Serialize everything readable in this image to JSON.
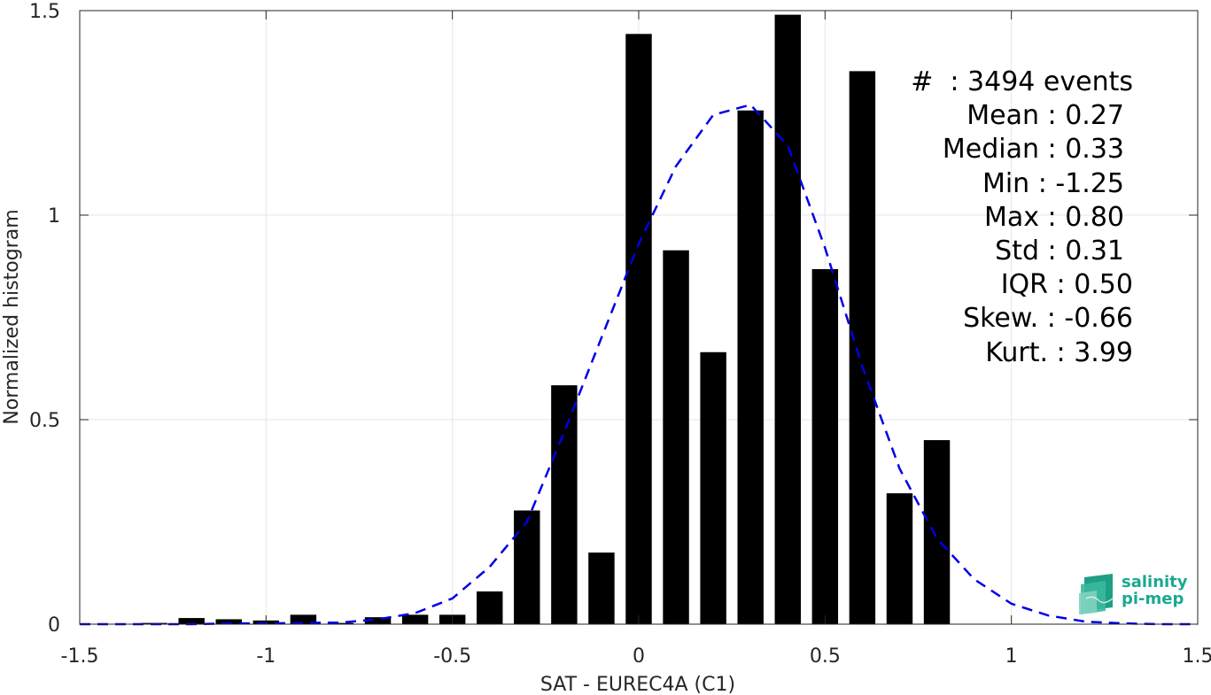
{
  "chart_data": {
    "type": "bar",
    "xlabel": "SAT - EUREC4A (C1)",
    "ylabel": "Normalized histogram",
    "xlim": [
      -1.5,
      1.5
    ],
    "ylim": [
      0,
      1.5
    ],
    "xticks": [
      -1.5,
      -1,
      -0.5,
      0,
      0.5,
      1,
      1.5
    ],
    "xtick_labels": [
      "-1.5",
      "-1",
      "-0.5",
      "0",
      "0.5",
      "1",
      "1.5"
    ],
    "yticks": [
      0,
      0.5,
      1,
      1.5
    ],
    "ytick_labels": [
      "0",
      "0.5",
      "1",
      "1.5"
    ],
    "grid": true,
    "bar_width": 0.07,
    "bar_color": "#000000",
    "bars": {
      "x": [
        -1.3,
        -1.2,
        -1.1,
        -1.0,
        -0.9,
        -0.8,
        -0.7,
        -0.6,
        -0.5,
        -0.4,
        -0.3,
        -0.2,
        -0.1,
        0.0,
        0.1,
        0.2,
        0.3,
        0.4,
        0.5,
        0.6,
        0.7,
        0.8
      ],
      "values": [
        0.003,
        0.015,
        0.012,
        0.009,
        0.023,
        0.003,
        0.017,
        0.023,
        0.023,
        0.08,
        0.278,
        0.584,
        0.175,
        1.443,
        0.914,
        0.665,
        1.256,
        1.49,
        0.868,
        1.352,
        0.32,
        0.45
      ]
    },
    "fit_curve": {
      "color": "#0000e6",
      "style": "dashed",
      "x": [
        -1.5,
        -1.4,
        -1.3,
        -1.2,
        -1.1,
        -1.0,
        -0.9,
        -0.8,
        -0.7,
        -0.6,
        -0.5,
        -0.4,
        -0.3,
        -0.2,
        -0.1,
        0.0,
        0.1,
        0.2,
        0.3,
        0.4,
        0.5,
        0.6,
        0.7,
        0.8,
        0.9,
        1.0,
        1.1,
        1.2,
        1.3,
        1.4,
        1.5
      ],
      "y": [
        0.0,
        0.0,
        0.0,
        0.0,
        0.002,
        0.002,
        0.003,
        0.004,
        0.012,
        0.027,
        0.063,
        0.14,
        0.25,
        0.47,
        0.7,
        0.93,
        1.12,
        1.245,
        1.27,
        1.17,
        0.92,
        0.63,
        0.38,
        0.21,
        0.11,
        0.05,
        0.021,
        0.006,
        0.002,
        0.0,
        0.0
      ]
    },
    "annotation": [
      "#  : 3494 events",
      "Mean : 0.27",
      "Median : 0.33",
      "Min : -1.25",
      "Max : 0.80",
      "Std : 0.31",
      "IQR : 0.50",
      "Skew. : -0.66",
      "Kurt. : 3.99"
    ]
  },
  "logo": {
    "line1": "salinity",
    "line2": "pi-mep",
    "icon": "salinity-pi-mep-logo-icon",
    "color": "#1aa98f"
  }
}
